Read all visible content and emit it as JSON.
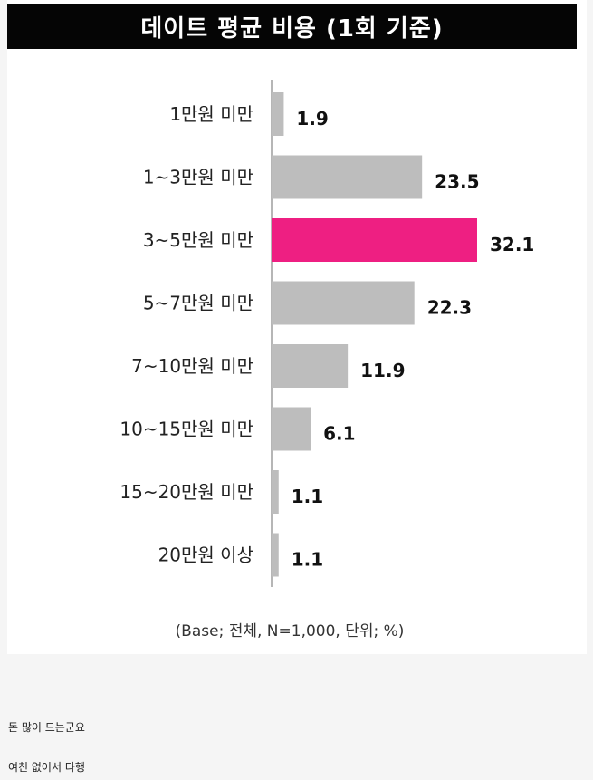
{
  "chart_data": {
    "type": "bar",
    "orientation": "horizontal",
    "title": "데이트 평균 비용 (1회 기준)",
    "categories": [
      "1만원 미만",
      "1~3만원 미만",
      "3~5만원 미만",
      "5~7만원 미만",
      "7~10만원 미만",
      "10~15만원 미만",
      "15~20만원 미만",
      "20만원 이상"
    ],
    "values": [
      1.9,
      23.5,
      32.1,
      22.3,
      11.9,
      6.1,
      1.1,
      1.1
    ],
    "value_labels": [
      "1.9",
      "23.5",
      "32.1",
      "22.3",
      "11.9",
      "6.1",
      "1.1",
      "1.1"
    ],
    "highlight_index": 2,
    "xlim": [
      0,
      32.1
    ],
    "grid": false,
    "note": "(Base; 전체, N=1,000, 단위; %)"
  },
  "colors": {
    "bar": "#bdbdbd",
    "highlight": "#ee1f82",
    "title_bg": "#050505",
    "axis": "#9e9e9e"
  },
  "comments": [
    "돈 많이 드는군요",
    "여친 없어서 다행"
  ]
}
